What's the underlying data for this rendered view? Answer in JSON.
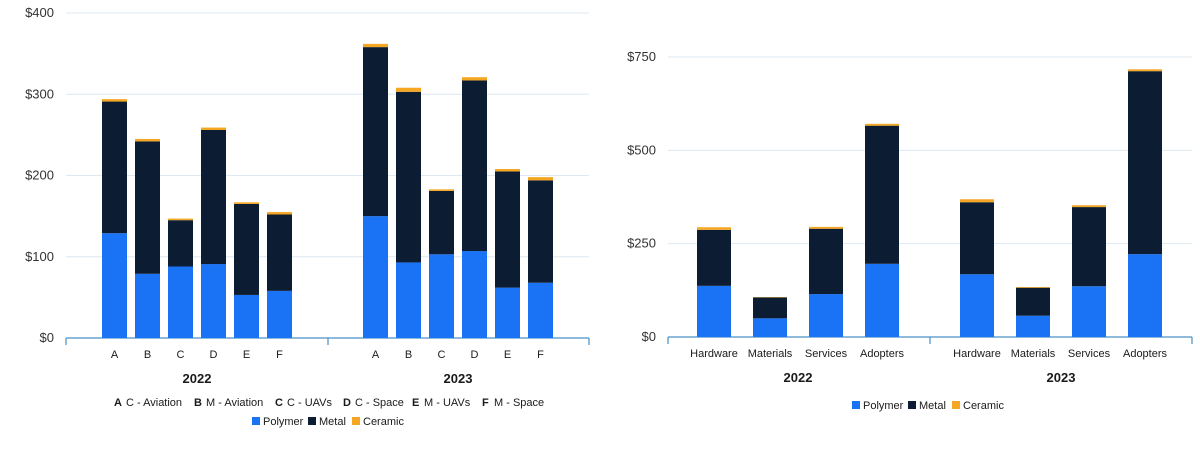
{
  "colors": {
    "Polymer": "#1a73f5",
    "Metal": "#0b1c33",
    "Ceramic": "#f5a623",
    "grid": "#dde8f0",
    "axis": "#4a90c8"
  },
  "chart_data": [
    {
      "type": "bar",
      "stacked": true,
      "ylim": [
        0,
        400
      ],
      "yticks": [
        "$0",
        "$100",
        "$200",
        "$300",
        "$400"
      ],
      "tick_values": [
        0,
        100,
        200,
        300,
        400
      ],
      "grid": true,
      "groups": [
        {
          "label": "2022",
          "categories": [
            "A",
            "B",
            "C",
            "D",
            "E",
            "F"
          ]
        },
        {
          "label": "2023",
          "categories": [
            "A",
            "B",
            "C",
            "D",
            "E",
            "F"
          ]
        }
      ],
      "series": [
        {
          "name": "Polymer",
          "values": [
            129,
            79,
            88,
            91,
            53,
            58,
            150,
            93,
            103,
            107,
            62,
            68
          ]
        },
        {
          "name": "Metal",
          "values": [
            162,
            163,
            57,
            165,
            112,
            94,
            208,
            210,
            78,
            210,
            143,
            126
          ]
        },
        {
          "name": "Ceramic",
          "values": [
            3,
            3,
            2,
            3,
            2,
            3,
            4,
            5,
            2,
            4,
            3,
            4
          ]
        }
      ],
      "key": [
        {
          "letter": "A",
          "text": "C - Aviation"
        },
        {
          "letter": "B",
          "text": "M - Aviation"
        },
        {
          "letter": "C",
          "text": "C - UAVs"
        },
        {
          "letter": "D",
          "text": "C - Space"
        },
        {
          "letter": "E",
          "text": "M - UAVs"
        },
        {
          "letter": "F",
          "text": "M - Space"
        }
      ],
      "legend": [
        "Polymer",
        "Metal",
        "Ceramic"
      ],
      "legend_position": "bottom"
    },
    {
      "type": "bar",
      "stacked": true,
      "ylim": [
        0,
        750
      ],
      "yticks": [
        "$0",
        "$250",
        "$500",
        "$750"
      ],
      "tick_values": [
        0,
        250,
        500,
        750
      ],
      "grid": true,
      "groups": [
        {
          "label": "2022",
          "categories": [
            "Hardware",
            "Materials",
            "Services",
            "Adopters"
          ]
        },
        {
          "label": "2023",
          "categories": [
            "Hardware",
            "Materials",
            "Services",
            "Adopters"
          ]
        }
      ],
      "series": [
        {
          "name": "Polymer",
          "values": [
            137,
            50,
            115,
            196,
            168,
            57,
            136,
            222
          ]
        },
        {
          "name": "Metal",
          "values": [
            150,
            56,
            175,
            370,
            193,
            75,
            212,
            490
          ]
        },
        {
          "name": "Ceramic",
          "values": [
            7,
            1,
            5,
            5,
            8,
            2,
            5,
            5
          ]
        }
      ],
      "legend": [
        "Polymer",
        "Metal",
        "Ceramic"
      ],
      "legend_position": "bottom"
    }
  ]
}
